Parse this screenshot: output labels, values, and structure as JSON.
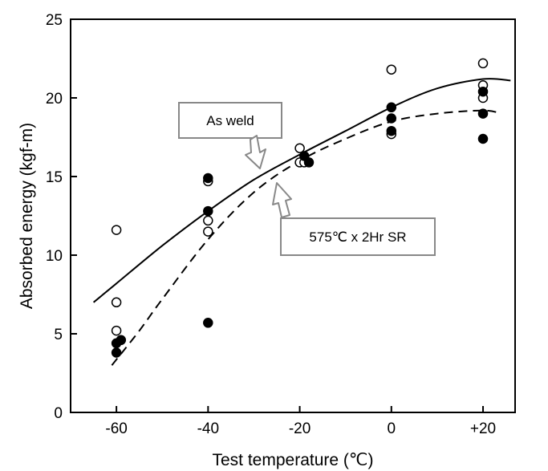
{
  "chart_data": {
    "type": "scatter",
    "title": "",
    "xlabel": "Test temperature (℃)",
    "ylabel": "Absorbed energy (kgf-m)",
    "xlim": [
      -70,
      27
    ],
    "ylim": [
      0,
      25
    ],
    "x_ticks": [
      -60,
      -40,
      -20,
      0,
      20
    ],
    "x_tick_labels": [
      "-60",
      "-40",
      "-20",
      "0",
      "+20"
    ],
    "y_ticks": [
      0,
      5,
      10,
      15,
      20,
      25
    ],
    "y_tick_labels": [
      "0",
      "5",
      "10",
      "15",
      "20",
      "25"
    ],
    "grid": false,
    "series": [
      {
        "name": "As weld",
        "marker": "open-circle",
        "points": [
          [
            -60,
            11.6
          ],
          [
            -60,
            7.0
          ],
          [
            -60,
            5.2
          ],
          [
            -40,
            14.7
          ],
          [
            -40,
            12.2
          ],
          [
            -40,
            11.5
          ],
          [
            -20,
            16.8
          ],
          [
            -20,
            15.9
          ],
          [
            -19,
            15.9
          ],
          [
            0,
            21.8
          ],
          [
            0,
            17.7
          ],
          [
            20,
            22.2
          ],
          [
            20,
            20.8
          ],
          [
            20,
            20.0
          ]
        ]
      },
      {
        "name": "575℃ x 2Hr SR",
        "marker": "filled-circle",
        "points": [
          [
            -60,
            4.4
          ],
          [
            -60,
            3.8
          ],
          [
            -59,
            4.6
          ],
          [
            -40,
            14.9
          ],
          [
            -40,
            12.8
          ],
          [
            -40,
            5.7
          ],
          [
            -19,
            16.3
          ],
          [
            -18,
            15.9
          ],
          [
            0,
            19.4
          ],
          [
            0,
            18.7
          ],
          [
            0,
            17.9
          ],
          [
            20,
            20.4
          ],
          [
            20,
            19.0
          ],
          [
            20,
            17.4
          ]
        ]
      }
    ],
    "curves": [
      {
        "name": "As weld",
        "style": "solid",
        "points": [
          [
            -65,
            7.0
          ],
          [
            -60,
            8.2
          ],
          [
            -50,
            10.6
          ],
          [
            -40,
            12.8
          ],
          [
            -30,
            14.8
          ],
          [
            -20,
            16.4
          ],
          [
            -10,
            17.9
          ],
          [
            0,
            19.4
          ],
          [
            10,
            20.6
          ],
          [
            20,
            21.2
          ],
          [
            26,
            21.1
          ]
        ]
      },
      {
        "name": "575℃ x 2Hr SR",
        "style": "dashed",
        "points": [
          [
            -61,
            3.0
          ],
          [
            -55,
            5.2
          ],
          [
            -50,
            7.2
          ],
          [
            -40,
            11.0
          ],
          [
            -30,
            14.0
          ],
          [
            -20,
            16.0
          ],
          [
            -10,
            17.4
          ],
          [
            0,
            18.5
          ],
          [
            10,
            19.0
          ],
          [
            20,
            19.2
          ],
          [
            24,
            19.0
          ]
        ]
      }
    ],
    "annotations": [
      {
        "text": "As weld"
      },
      {
        "text": "575℃ x 2Hr SR"
      }
    ]
  }
}
